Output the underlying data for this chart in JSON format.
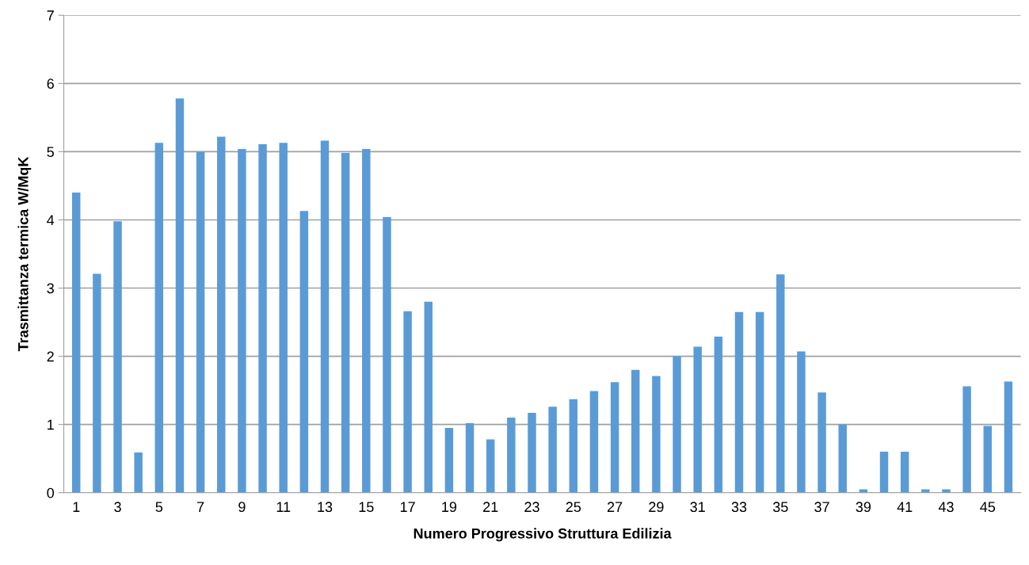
{
  "chart_data": {
    "type": "bar",
    "xlabel": "Numero Progressivo Struttura Edilizia",
    "ylabel": "Trasmittanza termica W/MqK",
    "categories": [
      "1",
      null,
      "3",
      null,
      "5",
      null,
      "7",
      null,
      "9",
      null,
      "11",
      null,
      "13",
      null,
      "15",
      null,
      "17",
      null,
      "19",
      null,
      "21",
      null,
      "23",
      null,
      "25",
      null,
      "27",
      null,
      "29",
      null,
      "31",
      null,
      "33",
      null,
      "35",
      null,
      "37",
      null,
      "39",
      null,
      "41",
      null,
      "43",
      null,
      "45",
      null
    ],
    "values": [
      4.4,
      3.21,
      3.98,
      0.59,
      5.13,
      5.78,
      5.0,
      5.22,
      5.04,
      5.11,
      5.13,
      4.13,
      5.16,
      4.98,
      5.04,
      4.04,
      2.66,
      2.8,
      0.95,
      1.02,
      0.78,
      1.1,
      1.17,
      1.26,
      1.37,
      1.49,
      1.62,
      1.8,
      1.71,
      2.0,
      2.14,
      2.29,
      2.65,
      2.65,
      3.2,
      2.07,
      1.47,
      1.0,
      0.05,
      0.6,
      0.6,
      0.05,
      0.05,
      1.56,
      0.98,
      1.63
    ],
    "color": "#5b9bd5",
    "ylim": [
      0,
      7
    ],
    "yticks": [
      0,
      1,
      2,
      3,
      4,
      5,
      6,
      7
    ],
    "grid": "y"
  }
}
